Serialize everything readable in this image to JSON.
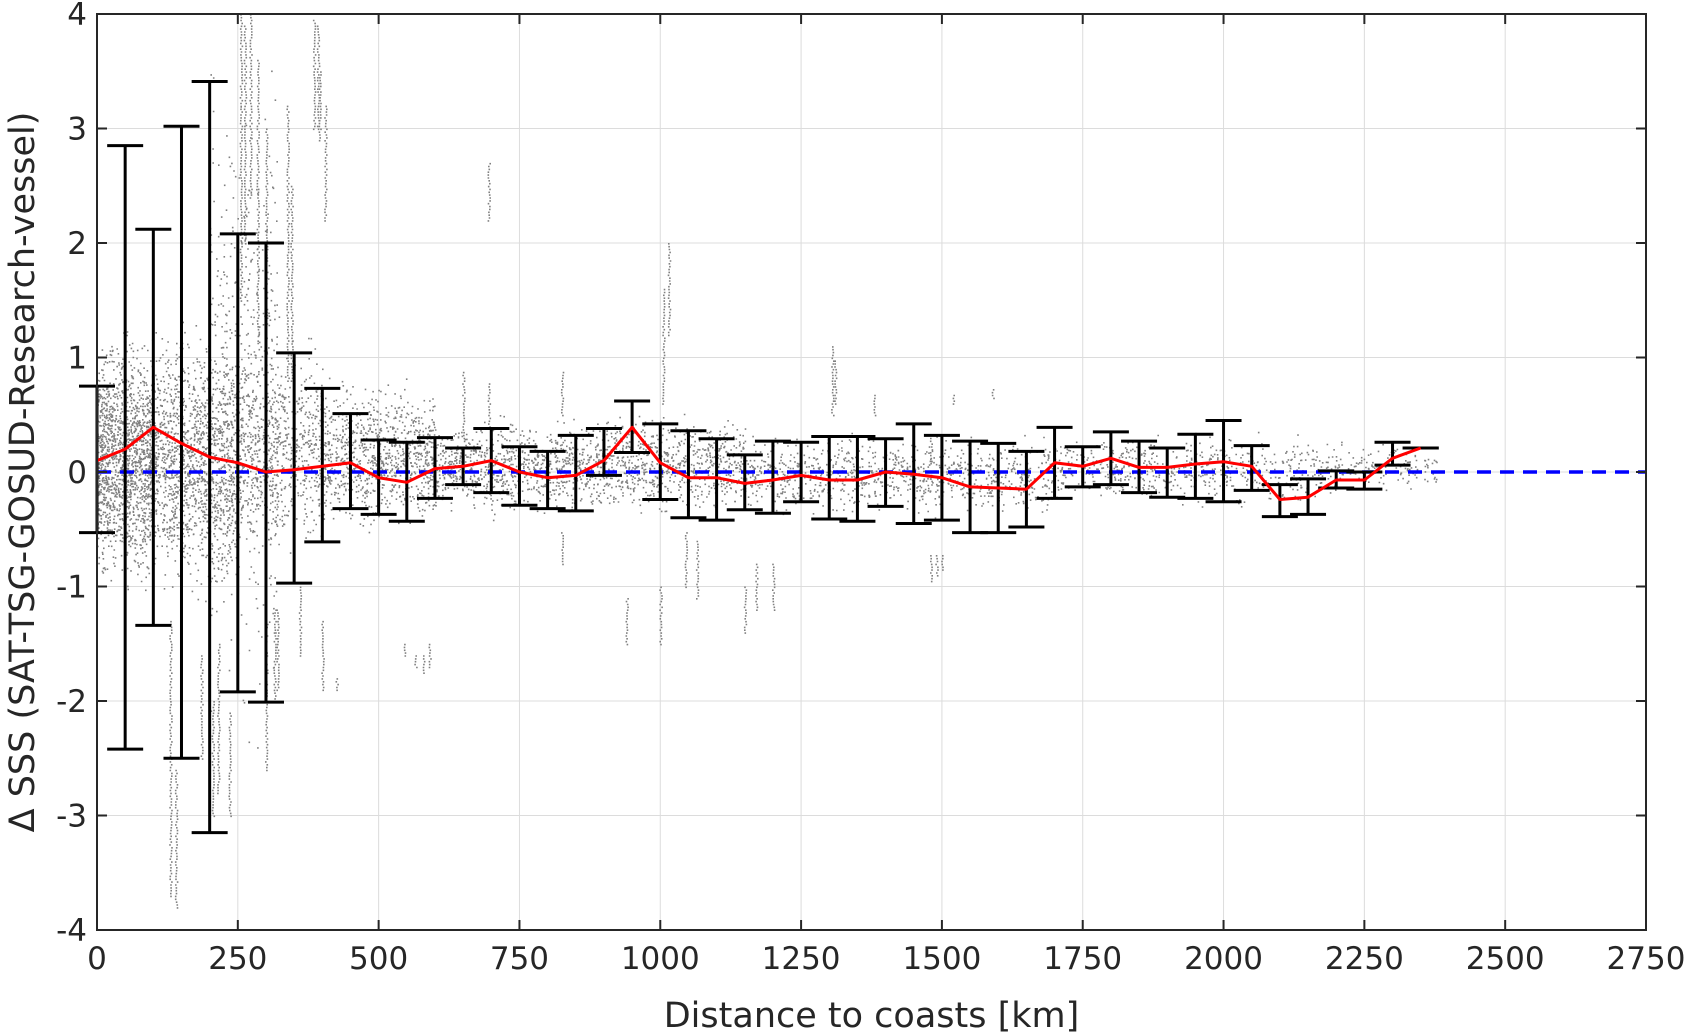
{
  "chart_data": {
    "type": "scatter",
    "title": "",
    "xlabel": "Distance to coasts [km]",
    "ylabel": "Δ SSS (SAT-TSG-GOSUD-Research-vessel)",
    "xlim": [
      0,
      2750
    ],
    "ylim": [
      -4,
      4
    ],
    "x_ticks": [
      0,
      250,
      500,
      750,
      1000,
      1250,
      1500,
      1750,
      2000,
      2250,
      2500,
      2750
    ],
    "y_ticks": [
      -4,
      -3,
      -2,
      -1,
      0,
      1,
      2,
      3,
      4
    ],
    "x_tick_labels": [
      "0",
      "250",
      "500",
      "750",
      "1000",
      "1250",
      "1500",
      "1750",
      "2000",
      "2250",
      "2500",
      "2750"
    ],
    "y_tick_labels": [
      "-4",
      "-3",
      "-2",
      "-1",
      "0",
      "1",
      "2",
      "3",
      "4"
    ],
    "grid": true,
    "colors": {
      "scatter": "#808080",
      "mean_line": "#ff0000",
      "error_bars": "#000000",
      "zero_line": "#0000ff"
    },
    "series": [
      {
        "kind": "binned_mean_with_std",
        "x": [
          0,
          50,
          100,
          150,
          200,
          250,
          300,
          350,
          400,
          450,
          500,
          550,
          600,
          650,
          700,
          750,
          800,
          850,
          900,
          950,
          1000,
          1050,
          1100,
          1150,
          1200,
          1250,
          1300,
          1350,
          1400,
          1450,
          1500,
          1550,
          1600,
          1650,
          1700,
          1750,
          1800,
          1850,
          1900,
          1950,
          2000,
          2050,
          2100,
          2150,
          2200,
          2250,
          2300,
          2350
        ],
        "mean": [
          0.1,
          0.2,
          0.39,
          0.25,
          0.13,
          0.08,
          0.0,
          0.02,
          0.05,
          0.08,
          -0.05,
          -0.09,
          0.03,
          0.05,
          0.1,
          0.0,
          -0.05,
          -0.03,
          0.1,
          0.39,
          0.08,
          -0.05,
          -0.05,
          -0.1,
          -0.07,
          -0.03,
          -0.07,
          -0.07,
          0.0,
          -0.02,
          -0.05,
          -0.13,
          -0.14,
          -0.15,
          0.08,
          0.05,
          0.12,
          0.04,
          0.04,
          0.07,
          0.09,
          0.05,
          -0.24,
          -0.22,
          -0.07,
          -0.07,
          0.12,
          0.21
        ],
        "upper": [
          0.75,
          2.85,
          2.12,
          3.02,
          3.41,
          2.08,
          2.0,
          1.04,
          0.73,
          0.51,
          0.28,
          0.26,
          0.3,
          0.21,
          0.38,
          0.22,
          0.18,
          0.32,
          0.38,
          0.62,
          0.42,
          0.36,
          0.29,
          0.15,
          0.27,
          0.26,
          0.31,
          0.31,
          0.29,
          0.42,
          0.32,
          0.27,
          0.25,
          0.18,
          0.39,
          0.22,
          0.35,
          0.27,
          0.21,
          0.33,
          0.45,
          0.23,
          -0.11,
          -0.06,
          0.01,
          0.0,
          0.26,
          0.21
        ],
        "lower": [
          -0.53,
          -2.42,
          -1.34,
          -2.5,
          -3.15,
          -1.92,
          -2.01,
          -0.97,
          -0.61,
          -0.32,
          -0.37,
          -0.43,
          -0.23,
          -0.11,
          -0.18,
          -0.29,
          -0.32,
          -0.34,
          -0.03,
          0.17,
          -0.24,
          -0.4,
          -0.42,
          -0.33,
          -0.36,
          -0.26,
          -0.41,
          -0.43,
          -0.3,
          -0.45,
          -0.42,
          -0.53,
          -0.53,
          -0.48,
          -0.23,
          -0.13,
          -0.11,
          -0.18,
          -0.22,
          -0.23,
          -0.26,
          -0.16,
          -0.39,
          -0.37,
          -0.14,
          -0.15,
          0.06,
          0.21
        ]
      }
    ],
    "reference_line": {
      "y": 0,
      "style": "dashed"
    },
    "scatter_density": [
      {
        "x0": 0,
        "x1": 100,
        "lo": -1.2,
        "hi": 1.4,
        "n": 1500
      },
      {
        "x0": 100,
        "x1": 250,
        "lo": -1.3,
        "hi": 1.5,
        "n": 1400
      },
      {
        "x0": 200,
        "x1": 320,
        "lo": -2.6,
        "hi": 3.9,
        "n": 500
      },
      {
        "x0": 250,
        "x1": 400,
        "lo": -0.9,
        "hi": 1.4,
        "n": 700
      },
      {
        "x0": 400,
        "x1": 600,
        "lo": -0.6,
        "hi": 0.9,
        "n": 900
      },
      {
        "x0": 600,
        "x1": 900,
        "lo": -0.45,
        "hi": 0.55,
        "n": 900
      },
      {
        "x0": 900,
        "x1": 1150,
        "lo": -0.45,
        "hi": 0.6,
        "n": 700
      },
      {
        "x0": 1150,
        "x1": 1700,
        "lo": -0.45,
        "hi": 0.4,
        "n": 900
      },
      {
        "x0": 1700,
        "x1": 2200,
        "lo": -0.35,
        "hi": 0.4,
        "n": 600
      },
      {
        "x0": 2200,
        "x1": 2380,
        "lo": -0.2,
        "hi": 0.3,
        "n": 140
      }
    ],
    "scatter_streaks": [
      [
        130,
        -1.3,
        -3.7
      ],
      [
        140,
        -2.6,
        -3.8
      ],
      [
        185,
        -1.6,
        -2.5
      ],
      [
        205,
        -2.0,
        -3.0
      ],
      [
        215,
        -1.5,
        -2.8
      ],
      [
        235,
        -2.1,
        -3.0
      ],
      [
        255,
        1.5,
        4.0
      ],
      [
        262,
        2.0,
        3.9
      ],
      [
        272,
        2.4,
        4.0
      ],
      [
        285,
        1.2,
        3.6
      ],
      [
        300,
        1.1,
        3.0
      ],
      [
        385,
        3.0,
        3.95
      ],
      [
        392,
        3.0,
        3.9
      ],
      [
        395,
        2.9,
        3.5
      ],
      [
        405,
        2.2,
        3.2
      ],
      [
        300,
        -1.3,
        -2.6
      ],
      [
        315,
        -1.2,
        -2.0
      ],
      [
        320,
        -1.2,
        -1.9
      ],
      [
        338,
        0.8,
        3.2
      ],
      [
        345,
        0.8,
        2.5
      ],
      [
        360,
        -1.0,
        -1.6
      ],
      [
        400,
        -1.3,
        -1.9
      ],
      [
        425,
        -1.8,
        -1.9
      ],
      [
        545,
        -1.5,
        -1.6
      ],
      [
        565,
        -1.6,
        -1.7
      ],
      [
        580,
        -1.6,
        -1.75
      ],
      [
        590,
        -1.5,
        -1.7
      ],
      [
        650,
        0.3,
        0.9
      ],
      [
        695,
        0.4,
        0.8
      ],
      [
        695,
        2.2,
        2.7
      ],
      [
        825,
        0.5,
        0.9
      ],
      [
        825,
        -0.5,
        -0.8
      ],
      [
        940,
        -1.1,
        -1.5
      ],
      [
        1000,
        -1.0,
        -1.5
      ],
      [
        1005,
        0.6,
        1.6
      ],
      [
        1015,
        1.2,
        2.0
      ],
      [
        1045,
        -0.5,
        -1.0
      ],
      [
        1065,
        -0.6,
        -1.1
      ],
      [
        1150,
        -1.0,
        -1.4
      ],
      [
        1170,
        -0.8,
        -1.2
      ],
      [
        1200,
        -0.8,
        -1.2
      ],
      [
        1305,
        0.5,
        1.1
      ],
      [
        1310,
        0.6,
        1.0
      ],
      [
        1380,
        0.5,
        0.7
      ],
      [
        1480,
        0.1,
        0.3
      ],
      [
        1480,
        -0.7,
        -0.95
      ],
      [
        1490,
        -0.7,
        -0.9
      ],
      [
        1500,
        -0.7,
        -0.85
      ],
      [
        1520,
        0.6,
        0.7
      ],
      [
        1590,
        0.65,
        0.75
      ]
    ]
  }
}
